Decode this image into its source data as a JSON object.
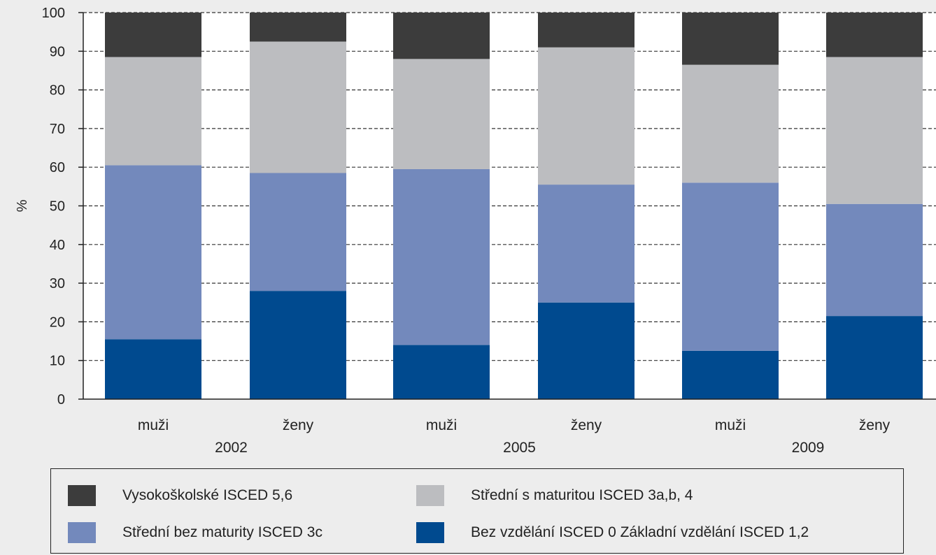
{
  "chart_data": {
    "type": "bar",
    "stacked": true,
    "categories": [
      "muži",
      "ženy",
      "muži",
      "ženy",
      "muži",
      "ženy"
    ],
    "groups": [
      {
        "label": "2002",
        "categories": [
          0,
          1
        ]
      },
      {
        "label": "2005",
        "categories": [
          2,
          3
        ]
      },
      {
        "label": "2009",
        "categories": [
          4,
          5
        ]
      }
    ],
    "series": [
      {
        "name": "Bez vzdělání  ISCED 0 Základní vzdělání ISCED 1,2",
        "color": "#004a8f",
        "values": [
          15.5,
          28,
          14,
          25,
          12.5,
          21.5
        ]
      },
      {
        "name": "Střední bez maturity  ISCED 3c",
        "color": "#7389bc",
        "values": [
          45,
          30.5,
          45.5,
          30.5,
          43.5,
          29
        ]
      },
      {
        "name": "Střední s maturitou  ISCED 3a,b, 4",
        "color": "#bcbdc0",
        "values": [
          28,
          34,
          28.5,
          35.5,
          30.5,
          38
        ]
      },
      {
        "name": "Vysokoškolské  ISCED 5,6",
        "color": "#3c3c3c",
        "values": [
          11.5,
          7.5,
          12,
          9,
          13.5,
          11.5
        ]
      }
    ],
    "ylabel": "%",
    "ylim": [
      0,
      100
    ],
    "yticks": [
      0,
      10,
      20,
      30,
      40,
      50,
      60,
      70,
      80,
      90,
      100
    ],
    "grid": "dashed horizontal",
    "legend_position": "bottom"
  },
  "legend": [
    {
      "label": "Vysokoškolské  ISCED 5,6",
      "color": "#3c3c3c"
    },
    {
      "label": "Střední s maturitou  ISCED 3a,b, 4",
      "color": "#bcbdc0"
    },
    {
      "label": "Střední bez maturity  ISCED 3c",
      "color": "#7389bc"
    },
    {
      "label": "Bez vzdělání  ISCED 0 Základní vzdělání ISCED 1,2",
      "color": "#004a8f"
    }
  ]
}
